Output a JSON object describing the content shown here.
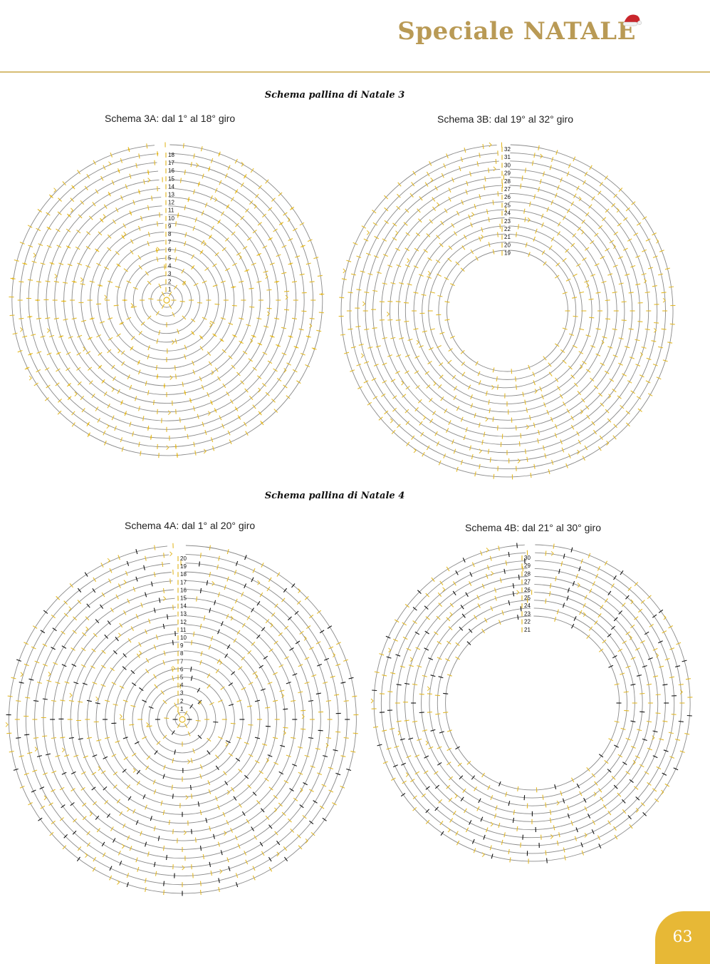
{
  "header": {
    "title": "Speciale NATALE",
    "hat_colors": {
      "red": "#c9262c",
      "white": "#f2f2f2"
    }
  },
  "colors": {
    "accent": "#b99a55",
    "rule": "#d7bd74",
    "stitch": "#e3b928",
    "ring": "#8a8a8a",
    "black_stitch": "#111111",
    "page_badge": "#e7b836"
  },
  "sections": [
    {
      "title": "Schema pallina di Natale 3",
      "diagrams": [
        {
          "label": "Schema 3A: dal 1° al 18° giro",
          "rounds": [
            "1",
            "2",
            "3",
            "4",
            "5",
            "6",
            "7",
            "8",
            "9",
            "10",
            "11",
            "12",
            "13",
            "14",
            "15",
            "16",
            "17",
            "18"
          ],
          "hole": false,
          "black": false,
          "markers": "diamond"
        },
        {
          "label": "Schema 3B: dal 19° al 32° giro",
          "rounds": [
            "19",
            "20",
            "21",
            "22",
            "23",
            "24",
            "25",
            "26",
            "27",
            "28",
            "29",
            "30",
            "31",
            "32"
          ],
          "hole": true,
          "black": false,
          "markers": "none"
        }
      ]
    },
    {
      "title": "Schema pallina di Natale 4",
      "diagrams": [
        {
          "label": "Schema 4A: dal 1° al 20° giro",
          "rounds": [
            "1",
            "2",
            "3",
            "4",
            "5",
            "6",
            "7",
            "8",
            "9",
            "10",
            "11",
            "12",
            "13",
            "14",
            "15",
            "16",
            "17",
            "18",
            "19",
            "20"
          ],
          "hole": false,
          "black": true,
          "markers": "none"
        },
        {
          "label": "Schema 4B: dal 21° al 30° giro",
          "rounds": [
            "21",
            "22",
            "23",
            "24",
            "25",
            "26",
            "27",
            "28",
            "29",
            "30"
          ],
          "hole": true,
          "black": true,
          "markers": "none"
        }
      ]
    }
  ],
  "page_number": "63"
}
